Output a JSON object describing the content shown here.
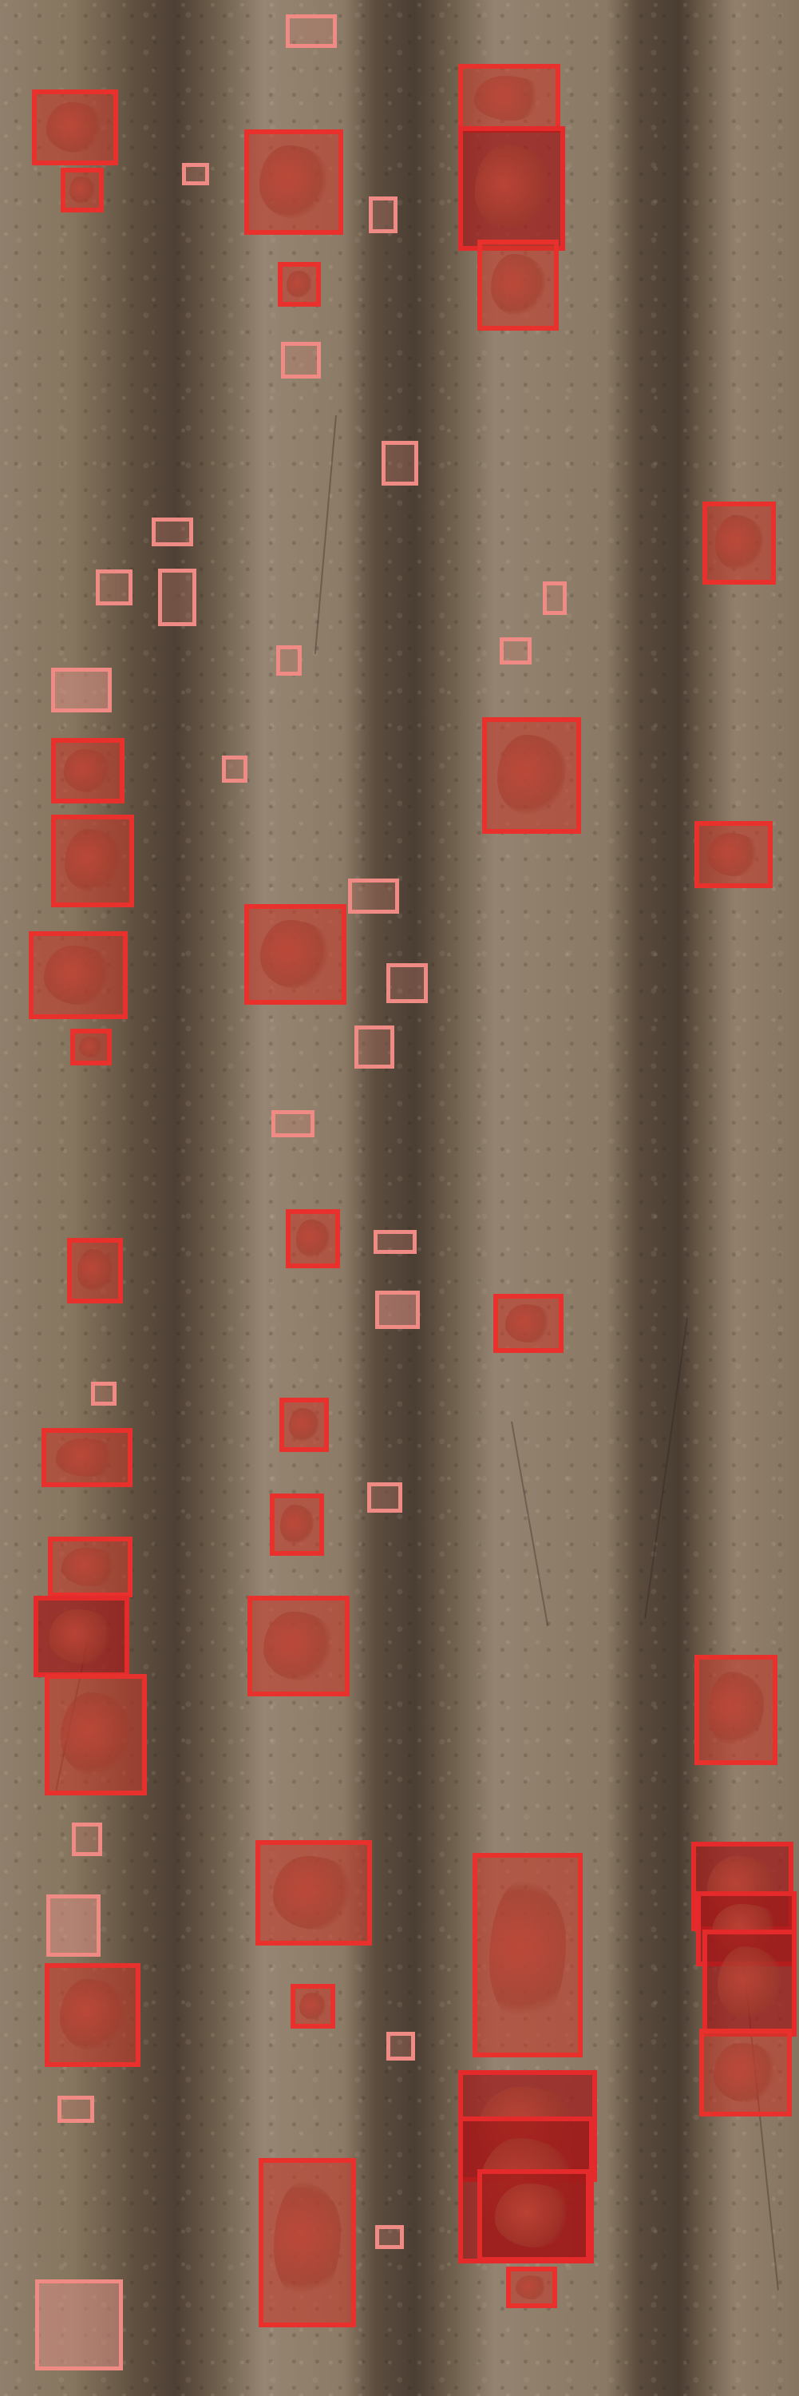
{
  "scene": "aerial-view-of-plowed-soil-rows-with-detected-plants",
  "colors": {
    "box_strong": "#e8312d",
    "box_weak": "#f08a84",
    "soil_light": "#8f7f6c",
    "soil_dark": "#4e4034"
  },
  "detections": [
    {
      "kind": "strong"
    },
    {
      "kind": "weak"
    }
  ]
}
